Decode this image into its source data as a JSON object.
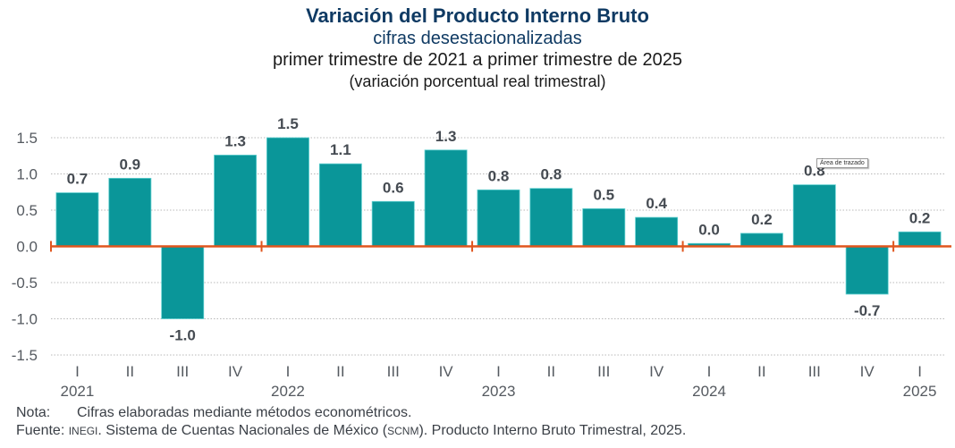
{
  "chart_data": {
    "type": "bar",
    "title": "Variación del Producto Interno Bruto",
    "subtitle": "cifras desestacionalizadas",
    "subtitle2": "primer trimestre de 2021 a primer trimestre de 2025",
    "subtitle3": "(variación porcentual real trimestral)",
    "xlabel": "",
    "ylabel": "",
    "ylim": [
      -1.5,
      1.5
    ],
    "yticks": [
      1.5,
      1.0,
      0.5,
      0.0,
      -0.5,
      -1.0,
      -1.5
    ],
    "ytick_labels": [
      "1.5",
      "1.0",
      "0.5",
      "0.0",
      "-0.5",
      "-1.0",
      "-1.5"
    ],
    "grid": true,
    "categories": [
      "I",
      "II",
      "III",
      "IV",
      "I",
      "II",
      "III",
      "IV",
      "I",
      "II",
      "III",
      "IV",
      "I",
      "II",
      "III",
      "IV",
      "I"
    ],
    "year_labels": [
      {
        "label": "2021",
        "index": 0
      },
      {
        "label": "2022",
        "index": 4
      },
      {
        "label": "2023",
        "index": 8
      },
      {
        "label": "2024",
        "index": 12
      },
      {
        "label": "2025",
        "index": 16
      }
    ],
    "year_separators": [
      4,
      8,
      12,
      16
    ],
    "values": [
      0.74,
      0.94,
      -1.0,
      1.26,
      1.5,
      1.14,
      0.62,
      1.33,
      0.78,
      0.8,
      0.52,
      0.4,
      0.04,
      0.18,
      0.85,
      -0.66,
      0.2
    ],
    "value_labels": [
      "0.7",
      "0.9",
      "-1.0",
      "1.3",
      "1.5",
      "1.1",
      "0.6",
      "1.3",
      "0.8",
      "0.8",
      "0.5",
      "0.4",
      "0.0",
      "0.2",
      "0.8",
      "-0.7",
      "0.2"
    ],
    "colors": {
      "bar": "#0a9699",
      "bar_edge": "#5fcfcf",
      "zero_axis": "#e0561e",
      "grid": "#b8b8b8"
    }
  },
  "tooltip": "Área de trazado",
  "footer": {
    "note_label": "Nota:",
    "note_text": "Cifras elaboradas mediante métodos econométricos.",
    "source_label": "Fuente:",
    "source_org": "INEGI",
    "source_text_1": ". Sistema de Cuentas Nacionales de México (",
    "source_abbrev": "SCNM",
    "source_text_2": "). Producto Interno Bruto Trimestral, 2025."
  }
}
